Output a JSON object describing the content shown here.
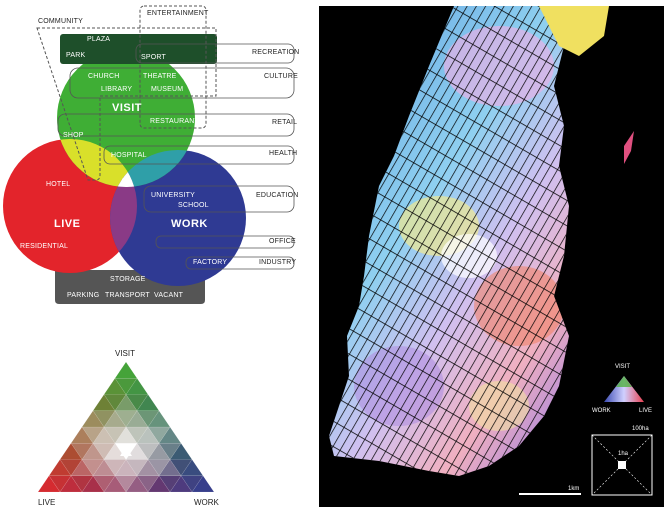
{
  "venn": {
    "categories": {
      "community": "COMMUNITY",
      "entertainment": "ENTERTAINMENT",
      "recreation": "RECREATION",
      "culture": "CULTURE",
      "retail": "RETAIL",
      "health": "HEALTH",
      "education": "EDUCATION",
      "office": "OFFICE",
      "industry": "INDUSTRY"
    },
    "circles": {
      "visit": "VISIT",
      "live": "LIVE",
      "work": "WORK"
    },
    "items": {
      "plaza": "PLAZA",
      "park": "PARK",
      "sport": "SPORT",
      "church": "CHURCH",
      "theatre": "THEATRE",
      "library": "LIBRARY",
      "museum": "MUSEUM",
      "shop": "SHOP",
      "restaurant": "RESTAURANT",
      "hospital": "HOSPITAL",
      "hotel": "HOTEL",
      "residential": "RESIDENTIAL",
      "university": "UNIVERSITY",
      "school": "SCHOOL",
      "factory": "FACTORY",
      "storage": "STORAGE",
      "parking": "PARKING",
      "transport": "TRANSPORT",
      "vacant": "VACANT"
    },
    "colors": {
      "visit": "#3fae35",
      "live": "#e3242b",
      "work": "#2f3a93",
      "dark_band": "#555555",
      "plaza_band": "#1e4f2a"
    }
  },
  "triangle": {
    "top": "VISIT",
    "left": "LIVE",
    "right": "WORK"
  },
  "map": {
    "legend": {
      "visit": "VISIT",
      "work": "WORK",
      "live": "LIVE"
    },
    "grid_area": "100ha",
    "cell_area": "1ha",
    "scale_bar": "1km"
  }
}
